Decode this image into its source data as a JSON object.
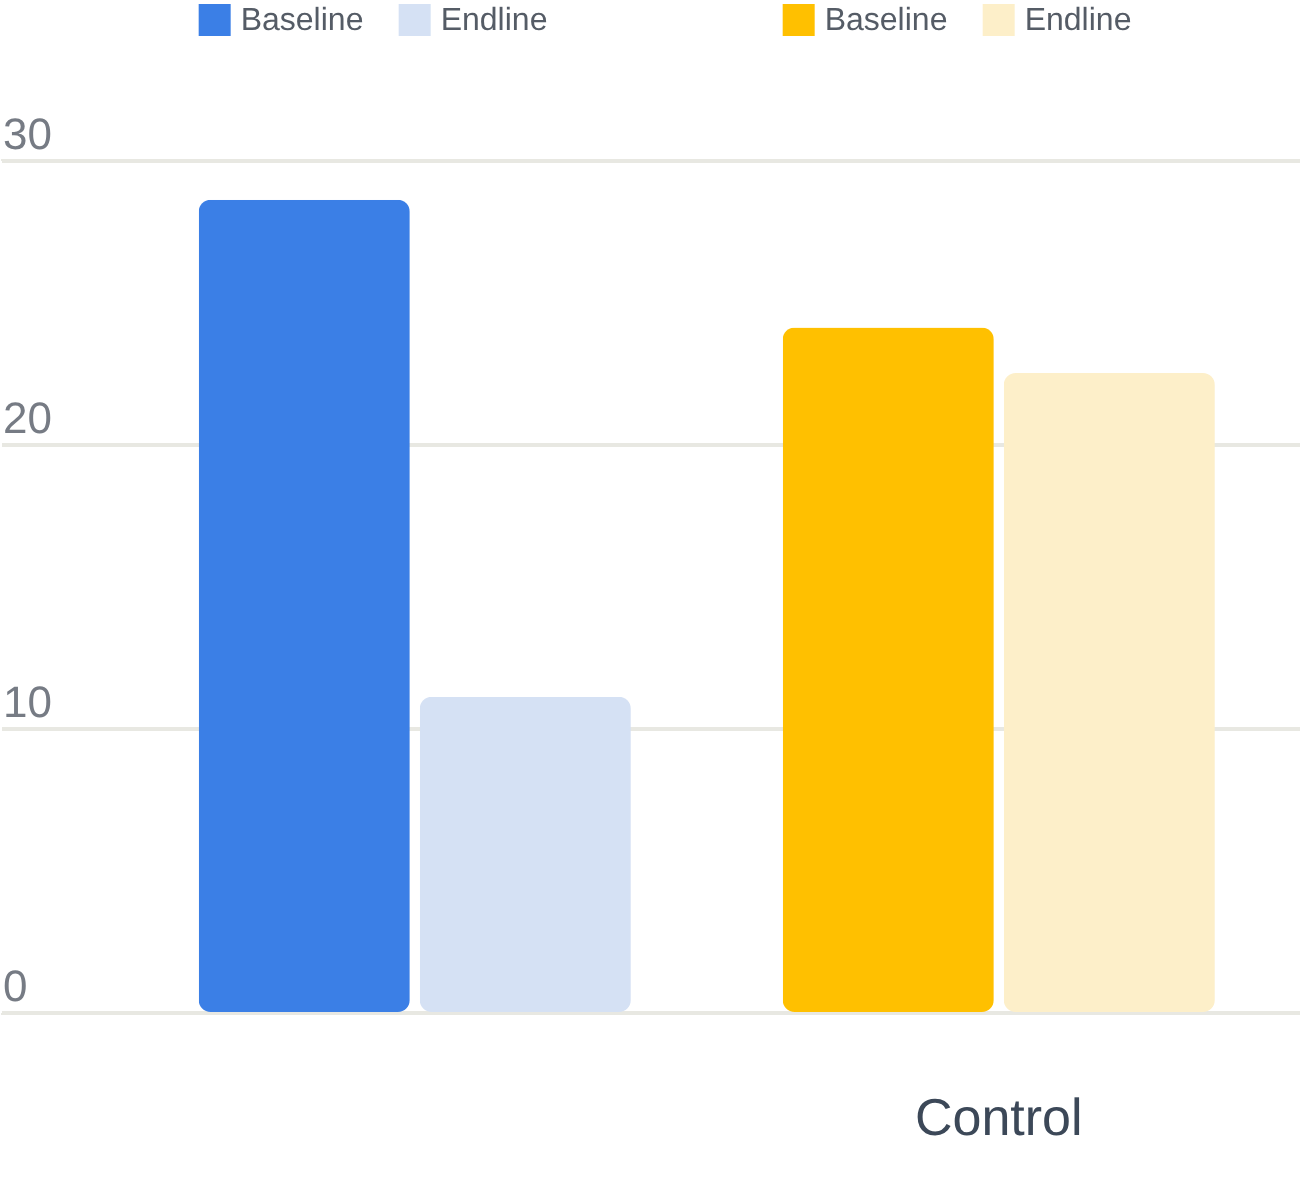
{
  "chart_data": {
    "type": "bar",
    "categories": [
      null,
      "Control"
    ],
    "series": [
      {
        "name": "Baseline",
        "color": "#3b7fe6",
        "values": [
          28.6,
          null
        ]
      },
      {
        "name": "Endline",
        "color": "#d5e1f4",
        "values": [
          11.1,
          null
        ]
      },
      {
        "name": "Baseline",
        "color": "#ffc000",
        "values": [
          null,
          24.1
        ]
      },
      {
        "name": "Endline",
        "color": "#fdefc9",
        "values": [
          null,
          22.5
        ]
      }
    ],
    "ylim": [
      0,
      30
    ],
    "yticks": [
      0,
      10,
      20,
      30
    ],
    "grid": "y",
    "legend": "top"
  }
}
